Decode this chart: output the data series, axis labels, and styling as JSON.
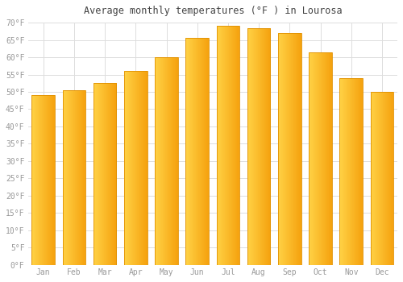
{
  "title": "Average monthly temperatures (°F ) in Lourosa",
  "months": [
    "Jan",
    "Feb",
    "Mar",
    "Apr",
    "May",
    "Jun",
    "Jul",
    "Aug",
    "Sep",
    "Oct",
    "Nov",
    "Dec"
  ],
  "values": [
    49,
    50.5,
    52.5,
    56,
    60,
    65.5,
    69,
    68.5,
    67,
    61.5,
    54,
    50
  ],
  "bar_color_left": "#FFCC44",
  "bar_color_right": "#F5A000",
  "background_color": "#FFFFFF",
  "grid_color": "#DDDDDD",
  "text_color": "#999999",
  "title_color": "#444444",
  "ylim": [
    0,
    70
  ],
  "ytick_step": 5,
  "figsize": [
    5.0,
    3.5
  ],
  "dpi": 100
}
